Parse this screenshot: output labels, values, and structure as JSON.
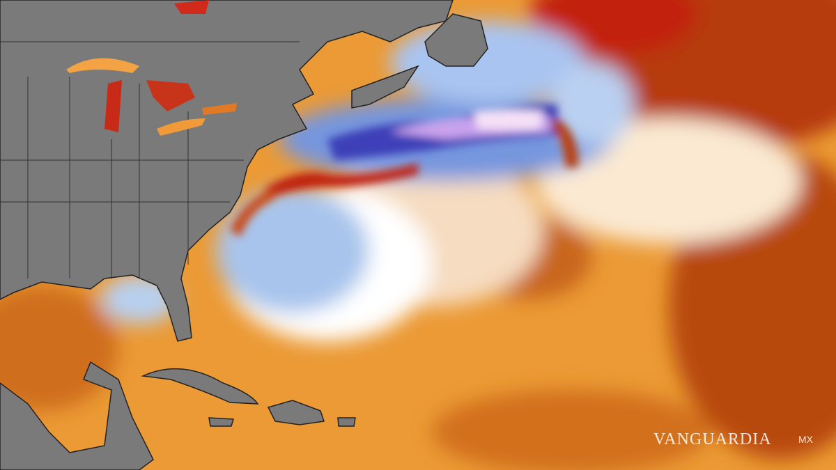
{
  "watermark": {
    "brand": "VANGUARDIA",
    "suffix": "MX"
  }
}
